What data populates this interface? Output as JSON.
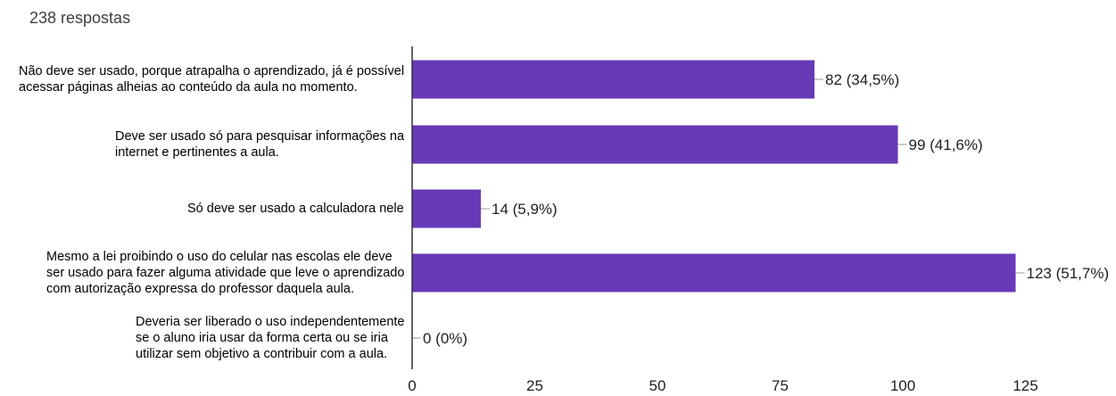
{
  "header": {
    "response_count": "238 respostas"
  },
  "colors": {
    "bar": "#673ab7",
    "axis": "#333333",
    "text": "#000000"
  },
  "chart_data": {
    "type": "bar",
    "orientation": "horizontal",
    "categories": [
      "Não deve ser usado, porque atrapalha o aprendizado, já é possível\nacessar páginas alheias ao conteúdo da aula no momento.",
      "Deve ser usado só para pesquisar informações na\ninternet e pertinentes a aula.",
      "Só deve ser usado a calculadora nele",
      "Mesmo a lei proibindo o uso do celular nas escolas ele deve\nser usado para fazer alguma atividade que leve o aprendizado\ncom autorização expressa do professor daquela aula.",
      "Deveria ser liberado o uso independentemente\nse o aluno iria usar da forma certa ou se iria\nutilizar sem objetivo a contribuir com a aula."
    ],
    "values": [
      82,
      99,
      14,
      123,
      0
    ],
    "data_labels": [
      "82 (34,5%)",
      "99 (41,6%)",
      "14 (5,9%)",
      "123 (51,7%)",
      "0 (0%)"
    ],
    "xlim": [
      0,
      125
    ],
    "xticks": [
      0,
      25,
      50,
      75,
      100,
      125
    ],
    "xtick_labels": [
      "0",
      "25",
      "50",
      "75",
      "100",
      "125"
    ],
    "grid": false,
    "legend": "none"
  }
}
